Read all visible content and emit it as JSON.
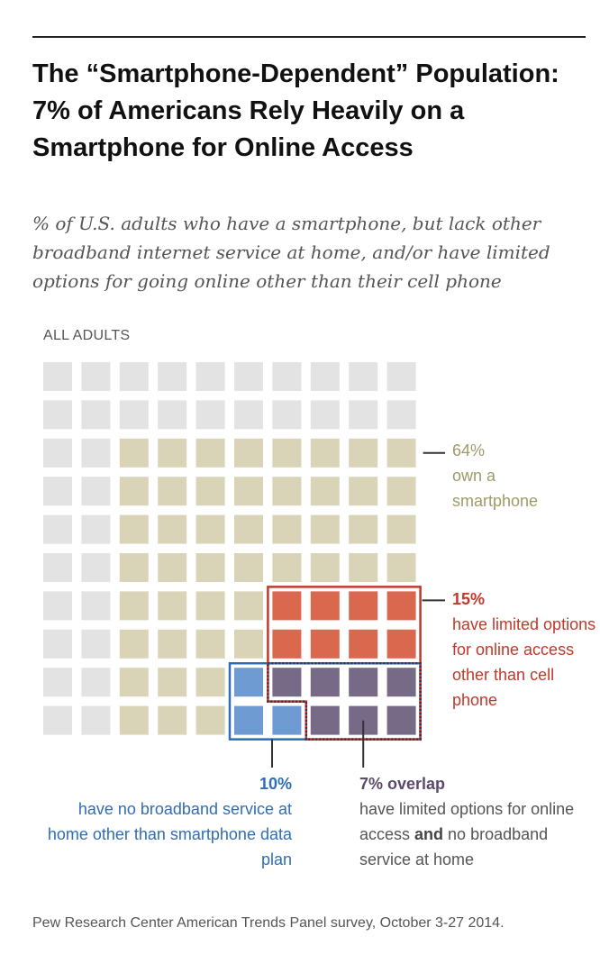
{
  "title": "The “Smartphone-Dependent” Population: 7% of Americans Rely Heavily on a Smartphone for Online Access",
  "subtitle": "% of U.S. adults who have a smartphone, but lack other broadband internet service at home, and/or have limited options for going online other than their cell phone",
  "group_label": "ALL ADULTS",
  "annotations": {
    "smartphone": {
      "pct": "64%",
      "text": "own a smartphone"
    },
    "limited": {
      "pct": "15%",
      "text": "have limited options for online access other than cell phone"
    },
    "broadband": {
      "pct": "10%",
      "text": "have no broadband service at home other than smartphone data plan"
    },
    "overlap": {
      "pct": "7% overlap",
      "text_before": "have limited options for online access ",
      "text_bold": "and",
      "text_after": " no broadband service at home"
    }
  },
  "source": "Pew Research Center American Trends Panel survey, October 3-27 2014.",
  "colors": {
    "base": "#e3e3e3",
    "smartphone": "#d9d4b7",
    "limited": "#d9684e",
    "broadband": "#6f9bd3",
    "overlap": "#776a86",
    "limited_outline": "#c0392b",
    "broadband_outline": "#2f6db5"
  },
  "chart_data": {
    "type": "waffle",
    "grid": {
      "rows": 10,
      "cols": 10
    },
    "total_percent": 100,
    "categories": [
      {
        "name": "own a smartphone",
        "percent": 64
      },
      {
        "name": "have limited options for online access other than cell phone",
        "percent": 15
      },
      {
        "name": "have no broadband service at home other than smartphone data plan",
        "percent": 10
      },
      {
        "name": "overlap",
        "percent": 7
      }
    ]
  }
}
